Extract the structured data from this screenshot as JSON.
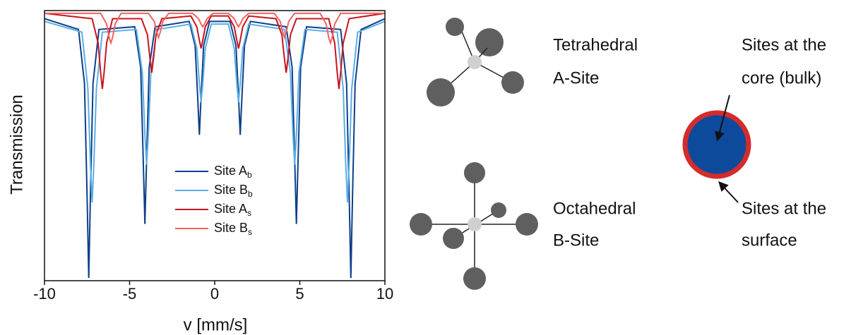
{
  "chart_data": {
    "type": "line",
    "xlabel": "v [mm/s]",
    "ylabel": "Transmission",
    "xlim": [
      -10,
      10
    ],
    "xticks": [
      -10,
      -5,
      0,
      5,
      10
    ],
    "ylim": [
      0,
      1
    ],
    "series": [
      {
        "name": "Site A",
        "name_sub": "b",
        "color": "#0d3f8a",
        "x": [
          -10,
          -8.0,
          -7.65,
          -7.5,
          -7.4,
          -7.3,
          -7.15,
          -6.8,
          -4.7,
          -4.35,
          -4.2,
          -4.1,
          -4.0,
          -3.85,
          -3.5,
          -1.5,
          -1.15,
          -1.0,
          -0.9,
          -0.8,
          -0.65,
          -0.3,
          0.9,
          1.25,
          1.4,
          1.5,
          1.6,
          1.75,
          2.1,
          4.2,
          4.55,
          4.7,
          4.8,
          4.9,
          5.05,
          5.4,
          7.4,
          7.75,
          7.9,
          8.0,
          8.1,
          8.25,
          8.6,
          10
        ],
        "values": [
          0.97,
          0.93,
          0.73,
          0.32,
          0.01,
          0.32,
          0.73,
          0.93,
          0.94,
          0.79,
          0.45,
          0.21,
          0.45,
          0.79,
          0.94,
          0.96,
          0.87,
          0.68,
          0.54,
          0.68,
          0.87,
          0.96,
          0.96,
          0.87,
          0.68,
          0.54,
          0.68,
          0.87,
          0.96,
          0.94,
          0.79,
          0.45,
          0.21,
          0.45,
          0.79,
          0.94,
          0.93,
          0.73,
          0.32,
          0.01,
          0.32,
          0.73,
          0.93,
          0.97
        ]
      },
      {
        "name": "Site B",
        "name_sub": "b",
        "color": "#5aaee6",
        "x": [
          -10,
          -7.8,
          -7.45,
          -7.3,
          -7.2,
          -7.1,
          -6.95,
          -6.6,
          -4.6,
          -4.25,
          -4.1,
          -4.0,
          -3.9,
          -3.75,
          -3.4,
          -1.4,
          -1.05,
          -0.9,
          -0.8,
          -0.7,
          -0.55,
          -0.2,
          0.8,
          1.15,
          1.3,
          1.4,
          1.5,
          1.65,
          2.0,
          4.1,
          4.45,
          4.6,
          4.7,
          4.8,
          4.95,
          5.3,
          7.2,
          7.55,
          7.7,
          7.8,
          7.9,
          8.05,
          8.4,
          10
        ],
        "values": [
          0.96,
          0.92,
          0.71,
          0.43,
          0.29,
          0.43,
          0.71,
          0.92,
          0.93,
          0.77,
          0.54,
          0.43,
          0.54,
          0.77,
          0.93,
          0.95,
          0.86,
          0.73,
          0.66,
          0.73,
          0.86,
          0.95,
          0.95,
          0.86,
          0.73,
          0.66,
          0.73,
          0.86,
          0.95,
          0.93,
          0.77,
          0.54,
          0.43,
          0.54,
          0.77,
          0.93,
          0.92,
          0.71,
          0.43,
          0.29,
          0.43,
          0.71,
          0.92,
          0.96
        ]
      },
      {
        "name": "Site A",
        "name_sub": "s",
        "color": "#c8141e",
        "x": [
          -10,
          -7.2,
          -6.85,
          -6.7,
          -6.6,
          -6.5,
          -6.35,
          -6.0,
          -4.3,
          -3.95,
          -3.8,
          -3.7,
          -3.6,
          -3.45,
          -3.1,
          -1.4,
          -1.05,
          -0.9,
          -0.8,
          -0.7,
          -0.55,
          -0.2,
          0.8,
          1.15,
          1.3,
          1.4,
          1.5,
          1.65,
          2.0,
          3.6,
          3.95,
          4.1,
          4.2,
          4.3,
          4.45,
          4.8,
          6.7,
          7.05,
          7.2,
          7.3,
          7.4,
          7.55,
          7.9,
          10
        ],
        "values": [
          0.99,
          0.97,
          0.88,
          0.77,
          0.71,
          0.77,
          0.88,
          0.97,
          0.97,
          0.91,
          0.82,
          0.77,
          0.82,
          0.91,
          0.97,
          0.98,
          0.94,
          0.89,
          0.86,
          0.89,
          0.94,
          0.98,
          0.98,
          0.94,
          0.89,
          0.86,
          0.89,
          0.94,
          0.98,
          0.97,
          0.91,
          0.82,
          0.77,
          0.82,
          0.91,
          0.97,
          0.97,
          0.88,
          0.77,
          0.71,
          0.77,
          0.88,
          0.97,
          0.99
        ]
      },
      {
        "name": "Site B",
        "name_sub": "s",
        "color": "#f26262",
        "x": [
          -10,
          -6.7,
          -6.35,
          -6.2,
          -6.1,
          -6.0,
          -5.85,
          -5.5,
          -3.9,
          -3.55,
          -3.4,
          -3.3,
          -3.2,
          -3.05,
          -2.7,
          -1.3,
          -0.95,
          -0.8,
          -0.7,
          -0.6,
          -0.45,
          -0.1,
          0.8,
          1.15,
          1.3,
          1.4,
          1.5,
          1.65,
          2.0,
          3.5,
          3.85,
          4.0,
          4.1,
          4.2,
          4.35,
          4.7,
          6.2,
          6.55,
          6.7,
          6.8,
          6.9,
          7.05,
          7.4,
          10
        ],
        "values": [
          0.99,
          0.99,
          0.95,
          0.9,
          0.88,
          0.9,
          0.95,
          0.99,
          0.99,
          0.96,
          0.92,
          0.9,
          0.92,
          0.96,
          0.99,
          0.99,
          0.97,
          0.95,
          0.94,
          0.95,
          0.97,
          0.99,
          0.99,
          0.97,
          0.95,
          0.94,
          0.95,
          0.97,
          0.99,
          0.99,
          0.96,
          0.92,
          0.9,
          0.92,
          0.96,
          0.99,
          0.99,
          0.95,
          0.9,
          0.88,
          0.9,
          0.95,
          0.99,
          0.99
        ]
      }
    ]
  },
  "diagram": {
    "tetrahedral": {
      "line1": "Tetrahedral",
      "line2": "A-Site"
    },
    "octahedral": {
      "line1": "Octahedral",
      "line2": "B-Site"
    },
    "core": {
      "line1": "Sites at the",
      "line2": "core (bulk)"
    },
    "surface": {
      "line1": "Sites at the",
      "line2": "surface"
    }
  }
}
